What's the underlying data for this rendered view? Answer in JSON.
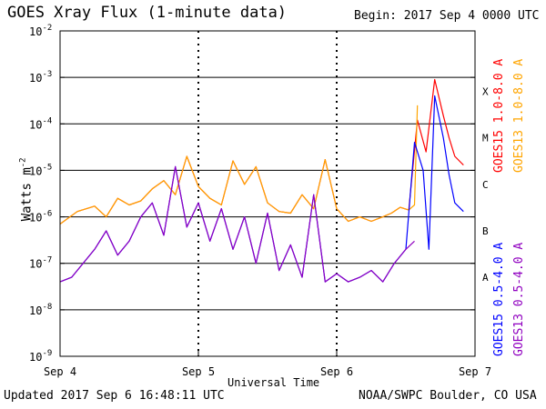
{
  "header": {
    "title": "GOES Xray Flux (1-minute data)",
    "begin": "Begin:  2017 Sep 4 0000 UTC"
  },
  "footer": {
    "updated": "Updated 2017 Sep  6 16:48:11 UTC",
    "credit": "NOAA/SWPC Boulder, CO USA"
  },
  "chart_data": {
    "type": "line",
    "title": "GOES Xray Flux (1-minute data)",
    "xlabel": "Universal Time",
    "ylabel": "Watts m",
    "ylabel_sup": "-2",
    "xlim": [
      "2017-09-04 00:00",
      "2017-09-07 00:00"
    ],
    "ylim": [
      1e-09,
      0.01
    ],
    "yscale": "log",
    "grid": true,
    "x_ticks": [
      "Sep 4",
      "Sep 5",
      "Sep 6",
      "Sep 7"
    ],
    "y_ticks": [
      {
        "base": "10",
        "exp": "-2"
      },
      {
        "base": "10",
        "exp": "-3"
      },
      {
        "base": "10",
        "exp": "-4"
      },
      {
        "base": "10",
        "exp": "-5"
      },
      {
        "base": "10",
        "exp": "-6"
      },
      {
        "base": "10",
        "exp": "-7"
      },
      {
        "base": "10",
        "exp": "-8"
      },
      {
        "base": "10",
        "exp": "-9"
      }
    ],
    "flare_classes": [
      {
        "label": "X",
        "value": 0.0005
      },
      {
        "label": "M",
        "value": 5e-05
      },
      {
        "label": "C",
        "value": 5e-06
      },
      {
        "label": "B",
        "value": 5e-07
      },
      {
        "label": "A",
        "value": 5e-08
      }
    ],
    "legend": [
      "GOES15 1.0-8.0 A",
      "GOES13 1.0-8.0 A",
      "GOES15 0.5-4.0 A",
      "GOES13 0.5-4.0 A"
    ],
    "legend_placement": "right",
    "series": [
      {
        "name": "GOES15 1.0-8.0 A",
        "color": "#ff0000",
        "x_hours": [
          0,
          3,
          6,
          8,
          10,
          12,
          14,
          16,
          18,
          20,
          22,
          24,
          26,
          28,
          30,
          32,
          34,
          36,
          38,
          40,
          42,
          44,
          46,
          48,
          50,
          52,
          54,
          56,
          57.5,
          59,
          60.5,
          62,
          63.5,
          65,
          66.5,
          67.5,
          68.5,
          70
        ],
        "y": [
          7e-07,
          1.3e-06,
          1.7e-06,
          1e-06,
          2.5e-06,
          1.8e-06,
          2.2e-06,
          4e-06,
          6e-06,
          3e-06,
          2e-05,
          4.5e-06,
          2.5e-06,
          1.8e-06,
          1.6e-05,
          5e-06,
          1.2e-05,
          2e-06,
          1.3e-06,
          1.2e-06,
          3e-06,
          1.5e-06,
          1.7e-05,
          1.5e-06,
          8e-07,
          1e-06,
          8e-07,
          1e-06,
          1.2e-06,
          1.6e-06,
          1.4e-06,
          0.00012,
          2.5e-05,
          0.0009,
          0.00015,
          5e-05,
          2e-05,
          1.3e-05
        ]
      },
      {
        "name": "GOES13 1.0-8.0 A",
        "color": "#ffa500",
        "x_hours": [
          0,
          3,
          6,
          8,
          10,
          12,
          14,
          16,
          18,
          20,
          22,
          24,
          26,
          28,
          30,
          32,
          34,
          36,
          38,
          40,
          42,
          44,
          46,
          48,
          50,
          52,
          54,
          56,
          57.5,
          59,
          60.5,
          61.5,
          62
        ],
        "y": [
          7e-07,
          1.3e-06,
          1.7e-06,
          1e-06,
          2.5e-06,
          1.8e-06,
          2.2e-06,
          4e-06,
          6e-06,
          3e-06,
          2e-05,
          4.5e-06,
          2.5e-06,
          1.8e-06,
          1.6e-05,
          5e-06,
          1.2e-05,
          2e-06,
          1.3e-06,
          1.2e-06,
          3e-06,
          1.5e-06,
          1.7e-05,
          1.5e-06,
          8e-07,
          1e-06,
          8e-07,
          1e-06,
          1.2e-06,
          1.6e-06,
          1.4e-06,
          1.8e-06,
          0.00025
        ]
      },
      {
        "name": "GOES15 0.5-4.0 A",
        "color": "#0000ff",
        "x_hours": [
          0,
          2,
          4,
          6,
          8,
          10,
          12,
          14,
          16,
          18,
          20,
          22,
          24,
          26,
          28,
          30,
          32,
          34,
          36,
          38,
          40,
          42,
          44,
          46,
          48,
          50,
          52,
          54,
          56,
          58,
          60,
          61.5,
          63,
          64,
          65,
          66.5,
          67.5,
          68.5,
          70
        ],
        "y": [
          4e-08,
          5e-08,
          1e-07,
          2e-07,
          5e-07,
          1.5e-07,
          3e-07,
          1e-06,
          2e-06,
          4e-07,
          1.2e-05,
          6e-07,
          2e-06,
          3e-07,
          1.5e-06,
          2e-07,
          1e-06,
          1e-07,
          1.2e-06,
          7e-08,
          2.5e-07,
          5e-08,
          3e-06,
          4e-08,
          6e-08,
          4e-08,
          5e-08,
          7e-08,
          4e-08,
          1e-07,
          2e-07,
          4e-05,
          1e-05,
          2e-07,
          0.0004,
          5e-05,
          8e-06,
          2e-06,
          1.3e-06
        ]
      },
      {
        "name": "GOES13 0.5-4.0 A",
        "color": "#9000c0",
        "x_hours": [
          0,
          2,
          4,
          6,
          8,
          10,
          12,
          14,
          16,
          18,
          20,
          22,
          24,
          26,
          28,
          30,
          32,
          34,
          36,
          38,
          40,
          42,
          44,
          46,
          48,
          50,
          52,
          54,
          56,
          58,
          60,
          61.5
        ],
        "y": [
          4e-08,
          5e-08,
          1e-07,
          2e-07,
          5e-07,
          1.5e-07,
          3e-07,
          1e-06,
          2e-06,
          4e-07,
          1.2e-05,
          6e-07,
          2e-06,
          3e-07,
          1.5e-06,
          2e-07,
          1e-06,
          1e-07,
          1.2e-06,
          7e-08,
          2.5e-07,
          5e-08,
          3e-06,
          4e-08,
          6e-08,
          4e-08,
          5e-08,
          7e-08,
          4e-08,
          1e-07,
          2e-07,
          3e-07
        ]
      }
    ]
  }
}
